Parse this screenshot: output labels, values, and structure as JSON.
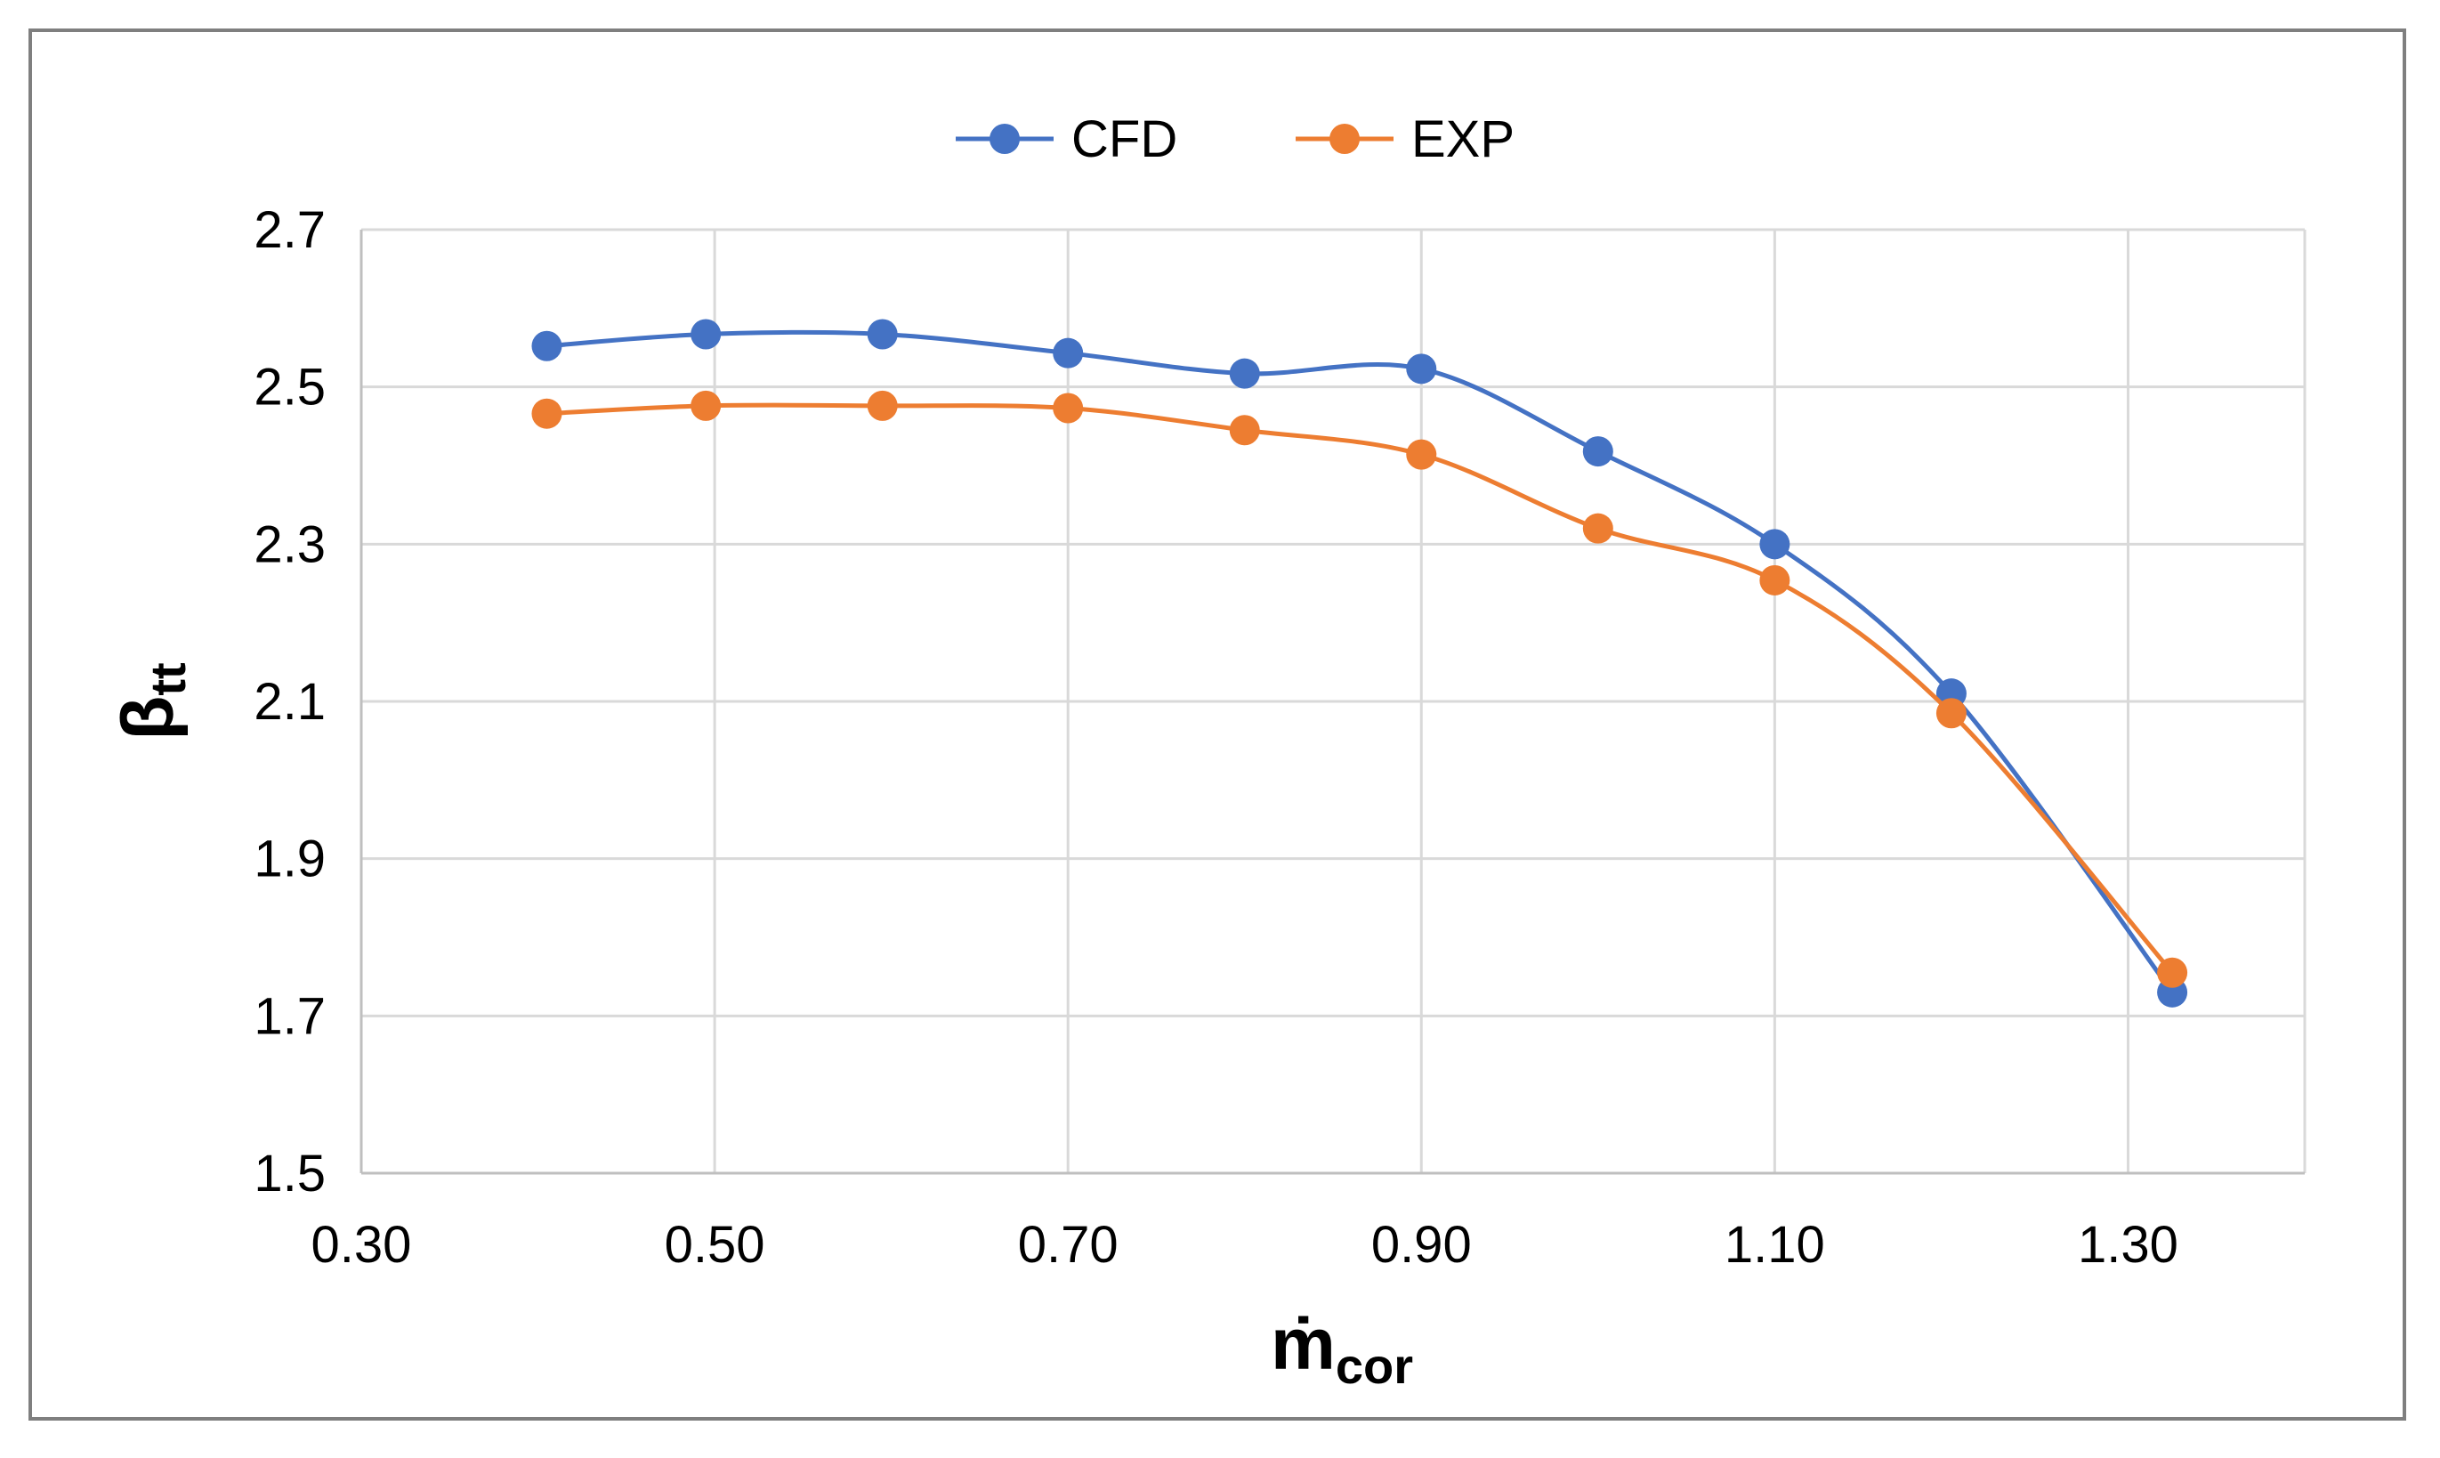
{
  "chart_data": {
    "type": "line",
    "title": "",
    "xlabel": {
      "main": "ṁ",
      "sub": "cor"
    },
    "ylabel": {
      "main": "β",
      "sub": "tt"
    },
    "xlim": [
      0.3,
      1.4
    ],
    "ylim": [
      1.5,
      2.7
    ],
    "xticks": [
      "0.30",
      "0.50",
      "0.70",
      "0.90",
      "1.10",
      "1.30"
    ],
    "yticks": [
      "2.7",
      "2.5",
      "2.3",
      "2.1",
      "1.9",
      "1.7",
      "1.5"
    ],
    "grid": true,
    "legend_position": "top-center",
    "series": [
      {
        "name": "CFD",
        "color": "#4472c4",
        "x": [
          0.405,
          0.495,
          0.595,
          0.7,
          0.8,
          0.9,
          1.0,
          1.1,
          1.2,
          1.325
        ],
        "y": [
          2.552,
          2.567,
          2.567,
          2.543,
          2.517,
          2.523,
          2.418,
          2.3,
          2.11,
          1.73
        ]
      },
      {
        "name": "EXP",
        "color": "#ed7d31",
        "x": [
          0.405,
          0.495,
          0.595,
          0.7,
          0.8,
          0.9,
          1.0,
          1.1,
          1.2,
          1.325
        ],
        "y": [
          2.466,
          2.476,
          2.476,
          2.473,
          2.445,
          2.414,
          2.32,
          2.254,
          2.085,
          1.755
        ]
      }
    ]
  }
}
